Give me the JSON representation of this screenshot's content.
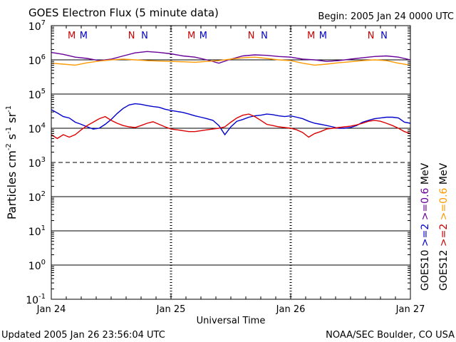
{
  "chart_data": {
    "type": "line",
    "title": "GOES Electron Flux (5 minute data)",
    "begin_label": "Begin: 2005 Jan 24 0000 UTC",
    "xlabel": "Universal Time",
    "ylabel_parts": [
      "Particles cm",
      "-2",
      "s",
      "-1",
      "sr",
      "-1"
    ],
    "x_ticks": [
      "Jan 24",
      "Jan 25",
      "Jan 26",
      "Jan 27"
    ],
    "x_range_days": [
      0,
      3
    ],
    "y_scale": "log",
    "y_range_exp": [
      -1,
      7
    ],
    "y_ticks": [
      {
        "base": "10",
        "exp": "7"
      },
      {
        "base": "10",
        "exp": "6"
      },
      {
        "base": "10",
        "exp": "5"
      },
      {
        "base": "10",
        "exp": "4"
      },
      {
        "base": "10",
        "exp": "3"
      },
      {
        "base": "10",
        "exp": "2"
      },
      {
        "base": "10",
        "exp": "1"
      },
      {
        "base": "10",
        "exp": "0"
      },
      {
        "base": "10",
        "exp": "-1"
      }
    ],
    "mn_markers": [
      {
        "label": "M",
        "day": 0.17,
        "color": "#cc0000"
      },
      {
        "label": "M",
        "day": 0.27,
        "color": "#0000cc"
      },
      {
        "label": "N",
        "day": 0.67,
        "color": "#cc0000"
      },
      {
        "label": "N",
        "day": 0.78,
        "color": "#0000cc"
      },
      {
        "label": "M",
        "day": 1.17,
        "color": "#cc0000"
      },
      {
        "label": "M",
        "day": 1.27,
        "color": "#0000cc"
      },
      {
        "label": "N",
        "day": 1.67,
        "color": "#cc0000"
      },
      {
        "label": "N",
        "day": 1.78,
        "color": "#0000cc"
      },
      {
        "label": "M",
        "day": 2.17,
        "color": "#cc0000"
      },
      {
        "label": "M",
        "day": 2.27,
        "color": "#0000cc"
      },
      {
        "label": "N",
        "day": 2.67,
        "color": "#cc0000"
      },
      {
        "label": "N",
        "day": 2.78,
        "color": "#0000cc"
      }
    ],
    "legend": {
      "satellites": [
        "GOES10",
        "GOES12"
      ],
      "unit": "MeV",
      "goes10_entries": [
        {
          "text": ">=2",
          "color": "#0000cc"
        },
        {
          "text": ">=0.6",
          "color": "#660099"
        }
      ],
      "goes12_entries": [
        {
          "text": ">=2",
          "color": "#cc0000"
        },
        {
          "text": ">=0.6",
          "color": "#ff9900"
        }
      ]
    },
    "series": [
      {
        "name": "GOES10 >=2 MeV",
        "color": "#0000cc",
        "x": [
          0,
          0.05,
          0.1,
          0.15,
          0.2,
          0.25,
          0.3,
          0.35,
          0.4,
          0.45,
          0.5,
          0.55,
          0.6,
          0.65,
          0.7,
          0.75,
          0.8,
          0.85,
          0.9,
          0.95,
          1.0,
          1.05,
          1.1,
          1.15,
          1.2,
          1.25,
          1.3,
          1.35,
          1.4,
          1.45,
          1.5,
          1.55,
          1.6,
          1.65,
          1.7,
          1.75,
          1.8,
          1.85,
          1.9,
          1.95,
          2.0,
          2.05,
          2.1,
          2.15,
          2.2,
          2.25,
          2.3,
          2.35,
          2.4,
          2.45,
          2.5,
          2.55,
          2.6,
          2.65,
          2.7,
          2.75,
          2.8,
          2.85,
          2.9,
          2.95,
          3.0
        ],
        "y": [
          35000,
          28000,
          22000,
          20000,
          15000,
          13000,
          11000,
          9500,
          10000,
          13000,
          18000,
          27000,
          38000,
          48000,
          52000,
          50000,
          46000,
          43000,
          41000,
          36000,
          33000,
          31000,
          29000,
          26000,
          23000,
          21000,
          19000,
          17000,
          12000,
          6500,
          11000,
          16000,
          18000,
          21000,
          23000,
          24000,
          26000,
          25000,
          23000,
          22000,
          23000,
          21000,
          19000,
          16000,
          14000,
          13000,
          12000,
          11000,
          10000,
          10000,
          10500,
          12000,
          15000,
          17000,
          19000,
          20000,
          21000,
          21000,
          20000,
          15000,
          14000
        ]
      },
      {
        "name": "GOES10 >=0.6 MeV",
        "color": "#660099",
        "x": [
          0,
          0.1,
          0.2,
          0.3,
          0.4,
          0.5,
          0.6,
          0.7,
          0.8,
          0.9,
          1.0,
          1.1,
          1.2,
          1.3,
          1.4,
          1.5,
          1.6,
          1.7,
          1.8,
          1.9,
          2.0,
          2.1,
          2.2,
          2.3,
          2.4,
          2.5,
          2.6,
          2.7,
          2.8,
          2.9,
          3.0
        ],
        "y": [
          1650000,
          1450000,
          1200000,
          1100000,
          950000,
          1050000,
          1300000,
          1600000,
          1750000,
          1650000,
          1500000,
          1300000,
          1200000,
          1000000,
          800000,
          1050000,
          1300000,
          1400000,
          1350000,
          1250000,
          1200000,
          1050000,
          1000000,
          900000,
          950000,
          1050000,
          1150000,
          1250000,
          1300000,
          1200000,
          1000000
        ]
      },
      {
        "name": "GOES12 >=2 MeV",
        "color": "#dd0000",
        "x": [
          0,
          0.05,
          0.1,
          0.15,
          0.2,
          0.25,
          0.3,
          0.35,
          0.4,
          0.45,
          0.5,
          0.55,
          0.6,
          0.65,
          0.7,
          0.75,
          0.8,
          0.85,
          0.9,
          0.95,
          1.0,
          1.05,
          1.1,
          1.15,
          1.2,
          1.25,
          1.3,
          1.35,
          1.4,
          1.45,
          1.5,
          1.55,
          1.6,
          1.65,
          1.7,
          1.75,
          1.8,
          1.85,
          1.9,
          1.95,
          2.0,
          2.05,
          2.1,
          2.15,
          2.2,
          2.25,
          2.3,
          2.35,
          2.4,
          2.45,
          2.5,
          2.55,
          2.6,
          2.65,
          2.7,
          2.75,
          2.8,
          2.85,
          2.9,
          2.95,
          3.0
        ],
        "y": [
          6500,
          5000,
          6500,
          5500,
          6500,
          9000,
          12000,
          15000,
          19000,
          22000,
          17000,
          14000,
          12000,
          11000,
          10500,
          12000,
          14000,
          15500,
          13000,
          11000,
          9500,
          9000,
          8500,
          8000,
          8000,
          8500,
          9000,
          9500,
          10000,
          11000,
          15000,
          20000,
          24000,
          26000,
          22000,
          17000,
          13000,
          12000,
          11000,
          10500,
          10000,
          9000,
          7500,
          5500,
          7000,
          8000,
          9500,
          10000,
          10500,
          11000,
          11500,
          12500,
          14000,
          16000,
          17000,
          16000,
          14000,
          12000,
          10000,
          8000,
          7000
        ]
      },
      {
        "name": "GOES12 >=0.6 MeV",
        "color": "#ff9900",
        "x": [
          0,
          0.1,
          0.2,
          0.3,
          0.4,
          0.5,
          0.6,
          0.7,
          0.8,
          0.9,
          1.0,
          1.1,
          1.2,
          1.3,
          1.4,
          1.5,
          1.6,
          1.7,
          1.8,
          1.9,
          2.0,
          2.1,
          2.2,
          2.3,
          2.4,
          2.5,
          2.6,
          2.7,
          2.8,
          2.9,
          3.0
        ],
        "y": [
          800000,
          750000,
          700000,
          820000,
          920000,
          1000000,
          1050000,
          1000000,
          950000,
          920000,
          900000,
          880000,
          850000,
          900000,
          950000,
          1050000,
          1150000,
          1200000,
          1100000,
          1000000,
          950000,
          800000,
          700000,
          750000,
          820000,
          880000,
          950000,
          1000000,
          950000,
          800000,
          700000
        ]
      }
    ]
  },
  "footer": {
    "updated": "Updated 2005 Jan 26 23:56:04 UTC",
    "credit": "NOAA/SEC Boulder, CO USA"
  }
}
